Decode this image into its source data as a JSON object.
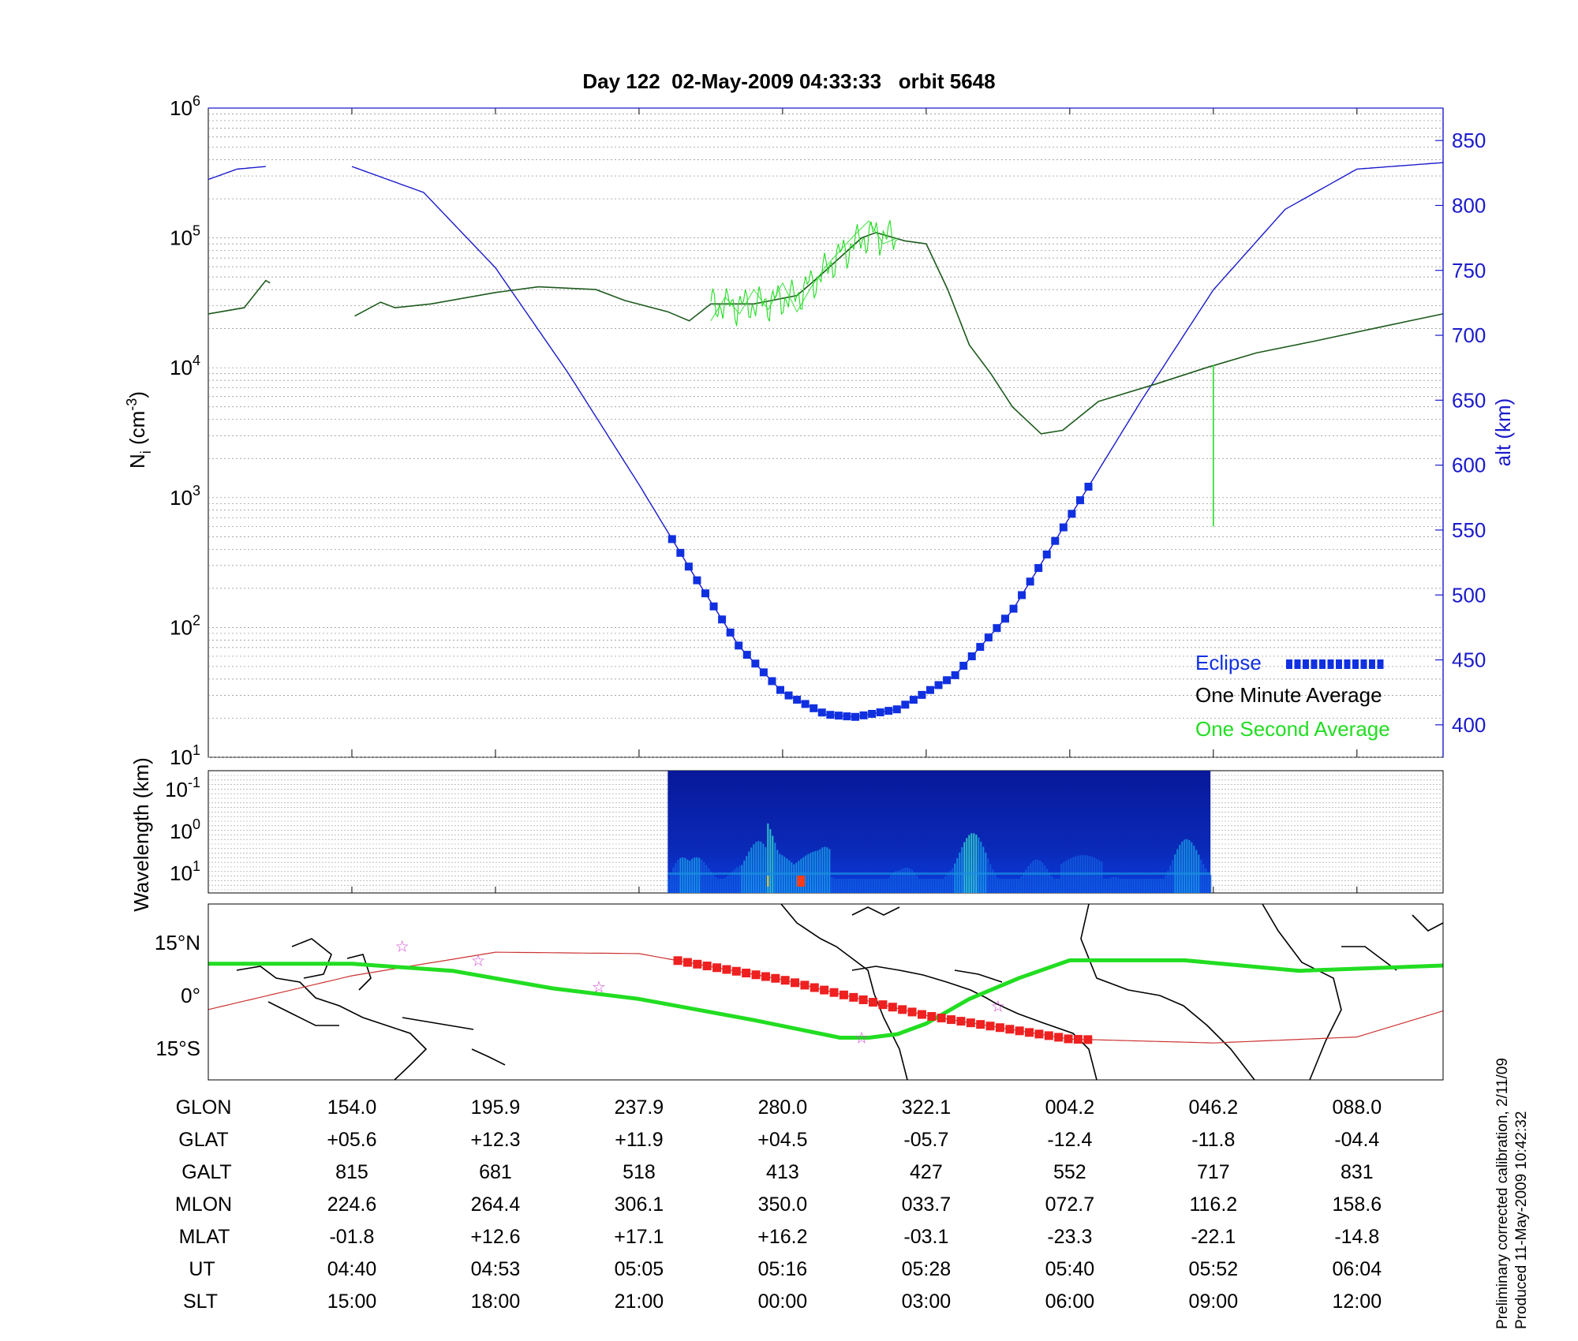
{
  "title": "Day 122  02-May-2009 04:33:33   orbit 5648",
  "footnote": [
    "Preliminary corrected calibration, 2/11/09",
    "Produced 11-May-2009 10:42:32"
  ],
  "colors": {
    "altitude": "#1a1acc",
    "one_minute": "#1d5a1d",
    "one_second": "#22dd22",
    "eclipse": "#1030e0",
    "map_eclipse": "#ee2020",
    "map_dip_equator": "#22dd22",
    "map_orbit": "#cc3333",
    "stars": "#cc44cc"
  },
  "chart_data": [
    {
      "type": "line",
      "panel": "density",
      "ylabel": "N_i (cm^-3)",
      "y_scale": "log",
      "ylim": [
        10,
        1000000
      ],
      "y_ticks": [
        "10^1",
        "10^2",
        "10^3",
        "10^4",
        "10^5",
        "10^6"
      ],
      "y2label": "alt (km)",
      "y2lim": [
        375,
        875
      ],
      "y2_ticks": [
        "400",
        "450",
        "500",
        "550",
        "600",
        "650",
        "700",
        "750",
        "800",
        "850"
      ],
      "xlim": [
        0,
        8.6
      ],
      "legend": {
        "position": "bottom-right",
        "entries": [
          {
            "label": "Eclipse",
            "color": "#1030e0"
          },
          {
            "label": "One Minute Average",
            "color": "#000000"
          },
          {
            "label": "One Second Average",
            "color": "#22dd22"
          }
        ]
      },
      "altitude_series": {
        "name": "alt (km)",
        "x": [
          0.0,
          0.2,
          0.4,
          1.0,
          1.5,
          2.0,
          2.5,
          3.0,
          3.4,
          3.7,
          4.0,
          4.3,
          4.5,
          4.8,
          5.2,
          5.6,
          6.0,
          6.5,
          7.0,
          7.5,
          8.0,
          8.6
        ],
        "values": [
          820,
          828,
          830,
          830,
          810,
          752,
          672,
          585,
          512,
          460,
          425,
          408,
          406,
          412,
          438,
          488,
          560,
          650,
          735,
          797,
          828,
          833
        ]
      },
      "eclipse": {
        "x_start": 3.23,
        "x_end": 6.13
      },
      "one_minute_average": {
        "name": "One Minute Average",
        "x": [
          0.0,
          0.25,
          0.4,
          0.43,
          1.02,
          1.2,
          1.3,
          1.55,
          2.0,
          2.3,
          2.7,
          2.9,
          3.2,
          3.35,
          3.5,
          3.8,
          4.1,
          4.25,
          4.55,
          4.65,
          4.85,
          5.0,
          5.15,
          5.3,
          5.45,
          5.6,
          5.8,
          5.95,
          6.2,
          6.6,
          6.95,
          7.3,
          7.7,
          8.2,
          8.6
        ],
        "values": [
          26000,
          29000,
          47000,
          45000,
          25000,
          32000,
          29000,
          31000,
          38000,
          42000,
          40000,
          33000,
          27000,
          23000,
          31000,
          31000,
          36000,
          50000,
          100000,
          110000,
          95000,
          90000,
          40000,
          15000,
          9000,
          5000,
          3100,
          3300,
          5500,
          7500,
          10000,
          13000,
          16000,
          21000,
          26000
        ]
      },
      "one_second_average": {
        "name": "One Second Average",
        "x": [
          3.5,
          3.6,
          3.7,
          3.8,
          3.9,
          4.0,
          4.1,
          4.2,
          4.3,
          4.4,
          4.5,
          4.6,
          4.7,
          4.8,
          6.7,
          7.0
        ],
        "values": [
          23000,
          35000,
          26000,
          40000,
          28000,
          45000,
          27000,
          42000,
          60000,
          80000,
          105000,
          135000,
          90000,
          100000,
          10500,
          600
        ]
      },
      "spike": {
        "x": 7.0,
        "from": 10500,
        "to": 600
      }
    },
    {
      "type": "heatmap",
      "panel": "spectrogram",
      "ylabel": "Wavelength (km)",
      "y_ticks": [
        "10^-1",
        "10^0",
        "10^1"
      ],
      "x_start": 3.2,
      "x_end": 6.98
    },
    {
      "type": "line",
      "panel": "map",
      "xlim": [
        150,
        360
      ],
      "ylim": [
        -24,
        26
      ],
      "y_ticks": [
        "15°N",
        "0°",
        "15°S"
      ],
      "dip_equator": {
        "name": "dip equator",
        "x": [
          0.0,
          1.0,
          1.7,
          2.4,
          3.0,
          3.8,
          4.4,
          4.6,
          4.8,
          5.0,
          5.3,
          5.65,
          6.0,
          6.8,
          7.6,
          8.6
        ],
        "values": [
          9,
          9,
          7,
          2,
          -1,
          -7,
          -12,
          -12,
          -11,
          -8,
          -1,
          5,
          10,
          10,
          7,
          8.5
        ]
      },
      "orbit_track": {
        "x": [
          0.0,
          1.0,
          2.0,
          3.0,
          4.0,
          5.0,
          6.0,
          7.0,
          8.0,
          8.6
        ],
        "values": [
          -4,
          5.6,
          12.3,
          11.9,
          4.5,
          -5.7,
          -12.4,
          -13.5,
          -11.8,
          -4.4
        ]
      },
      "map_eclipse": {
        "x_start": 3.27,
        "x_end": 6.13
      },
      "stars": [
        {
          "x": 1.35,
          "lat": 14
        },
        {
          "x": 1.88,
          "lat": 10
        },
        {
          "x": 2.72,
          "lat": 2.5
        },
        {
          "x": 4.55,
          "lat": -12
        },
        {
          "x": 5.5,
          "lat": -3
        }
      ]
    }
  ],
  "table": {
    "labels": [
      "GLON",
      "GLAT",
      "GALT",
      "MLON",
      "MLAT",
      "UT",
      "SLT"
    ],
    "columns": [
      [
        "154.0",
        "+05.6",
        "815",
        "224.6",
        "-01.8",
        "04:40",
        "15:00"
      ],
      [
        "195.9",
        "+12.3",
        "681",
        "264.4",
        "+12.6",
        "04:53",
        "18:00"
      ],
      [
        "237.9",
        "+11.9",
        "518",
        "306.1",
        "+17.1",
        "05:05",
        "21:00"
      ],
      [
        "280.0",
        "+04.5",
        "413",
        "350.0",
        "+16.2",
        "05:16",
        "00:00"
      ],
      [
        "322.1",
        "-05.7",
        "427",
        "033.7",
        "-03.1",
        "05:28",
        "03:00"
      ],
      [
        "004.2",
        "-12.4",
        "552",
        "072.7",
        "-23.3",
        "05:40",
        "06:00"
      ],
      [
        "046.2",
        "-11.8",
        "717",
        "116.2",
        "-22.1",
        "05:52",
        "09:00"
      ],
      [
        "088.0",
        "-04.4",
        "831",
        "158.6",
        "-14.8",
        "06:04",
        "12:00"
      ]
    ]
  }
}
